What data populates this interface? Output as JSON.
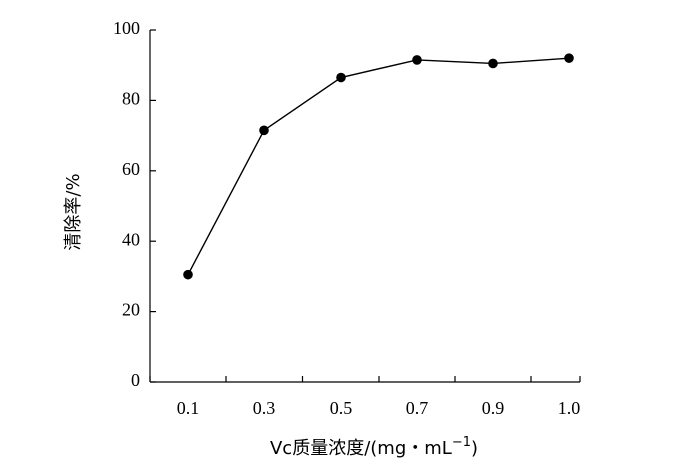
{
  "chart_data": {
    "type": "line",
    "x": [
      0.1,
      0.3,
      0.5,
      0.7,
      0.9,
      1.0
    ],
    "x_tick_labels": [
      "0.1",
      "0.3",
      "0.5",
      "0.7",
      "0.9",
      "1.0"
    ],
    "series": [
      {
        "values": [
          30.5,
          71.5,
          86.5,
          91.5,
          90.5,
          92.0
        ]
      }
    ],
    "ylim": [
      0,
      100
    ],
    "y_ticks": [
      0,
      20,
      40,
      60,
      80,
      100
    ],
    "y_tick_labels": [
      "0",
      "20",
      "40",
      "60",
      "80",
      "100"
    ],
    "xlabel": "Vc质量浓度/(mg・mL",
    "xlabel_superscript": "−1",
    "xlabel_suffix": ")",
    "ylabel": "清除率/%",
    "grid": false,
    "legend": "none",
    "marker": "filled-circle",
    "line_color": "#000000"
  }
}
